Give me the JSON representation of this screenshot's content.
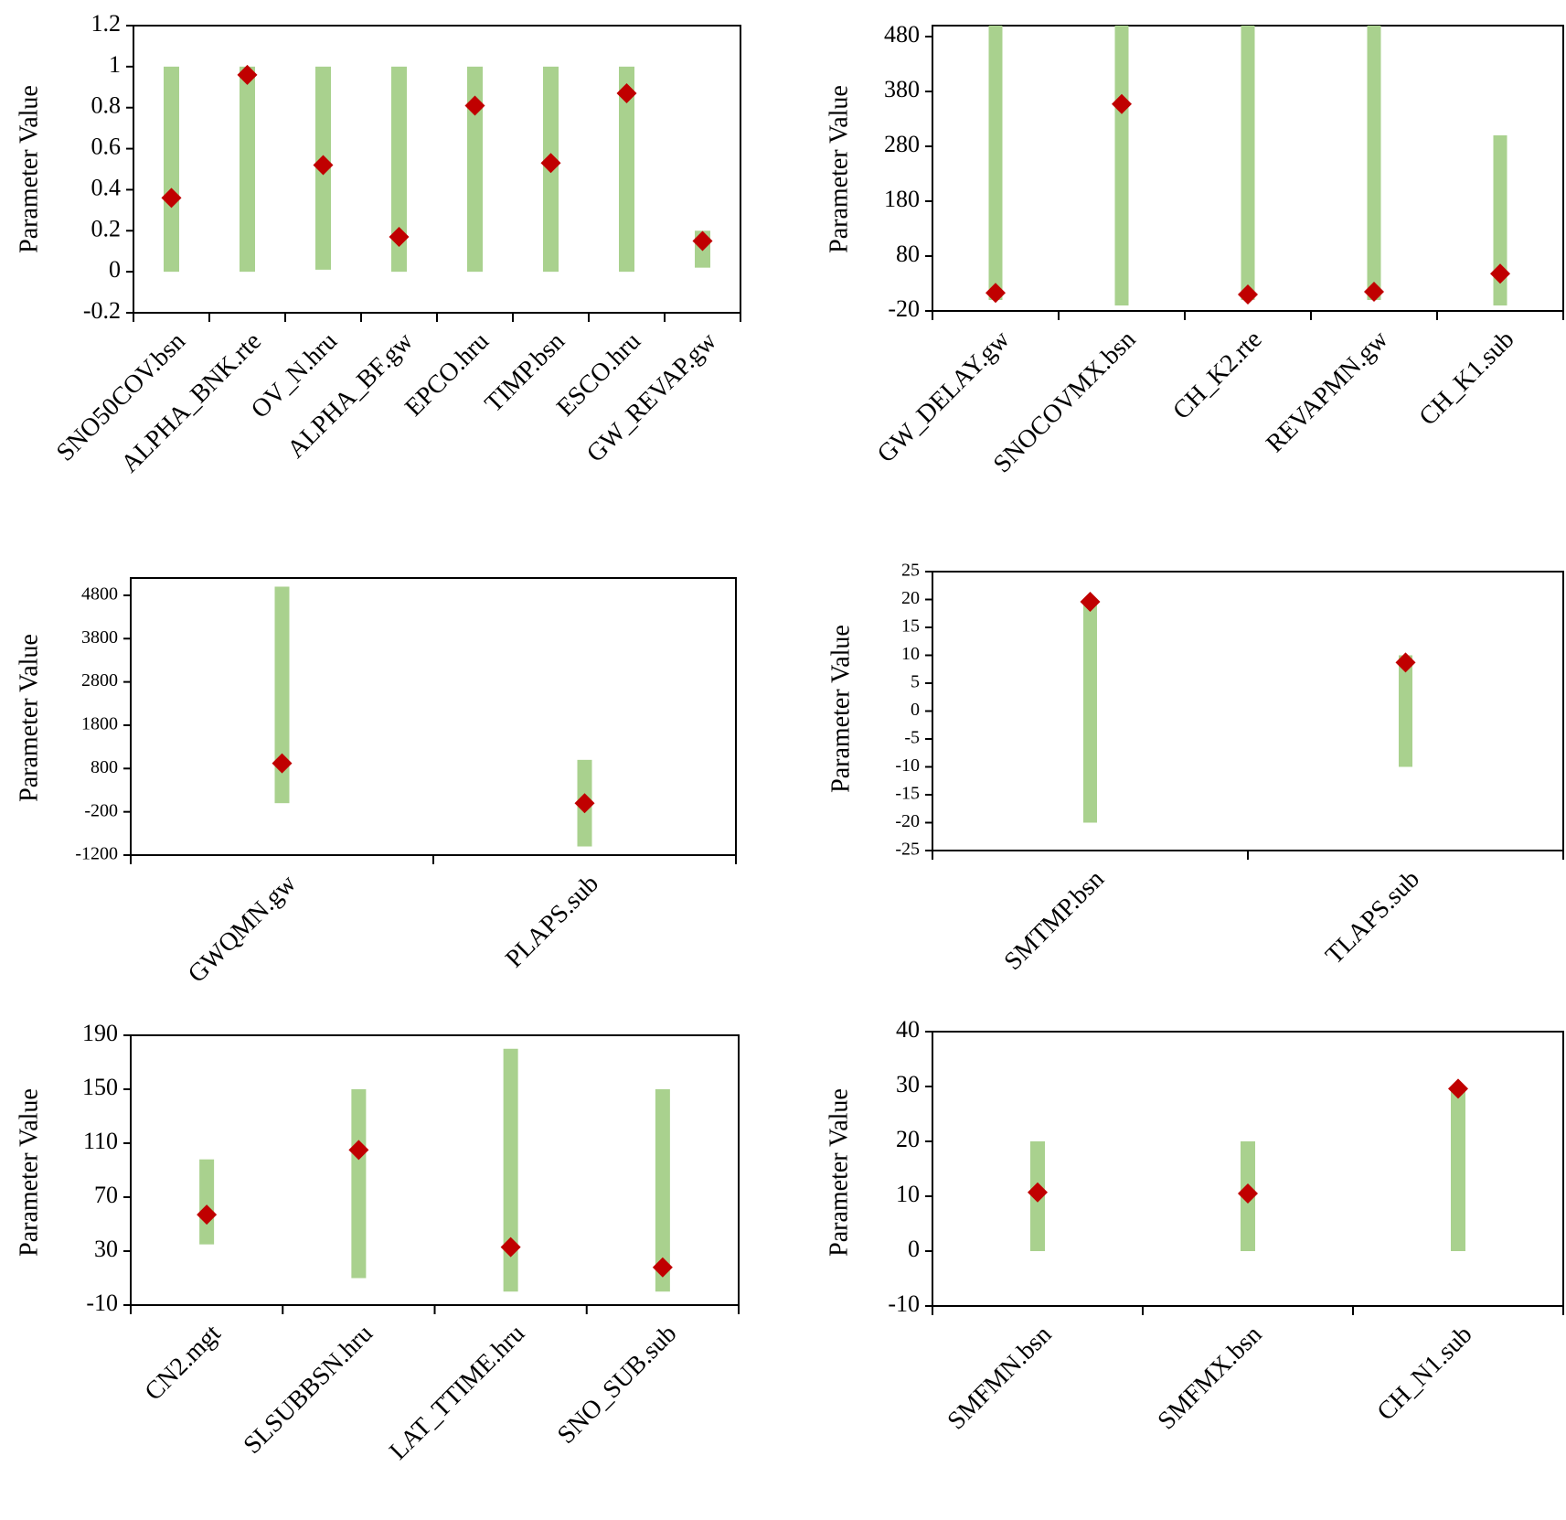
{
  "colors": {
    "range_bar": "#a9d18e",
    "marker": "#c00000",
    "axis": "#000000",
    "frame": "#000000"
  },
  "chart_data": [
    {
      "type": "range-dot",
      "title": "",
      "ylabel": "Parameter Value",
      "ylim": [
        -0.2,
        1.2
      ],
      "yticks": [
        -0.2,
        0,
        0.2,
        0.4,
        0.6,
        0.8,
        1,
        1.2
      ],
      "ytick_labels": [
        "-0.2",
        "0",
        "0.2",
        "0.4",
        "0.6",
        "0.8",
        "1",
        "1.2"
      ],
      "categories": [
        "SNO50COV.bsn",
        "ALPHA_BNK.rte",
        "OV_N.hru",
        "ALPHA_BF.gw",
        "EPCO.hru",
        "TIMP.bsn",
        "ESCO.hru",
        "GW_REVAP.gw"
      ],
      "range_min": [
        0,
        0,
        0.01,
        0,
        0,
        0,
        0,
        0.02
      ],
      "range_max": [
        1,
        1,
        1,
        1,
        1,
        1,
        1,
        0.2
      ],
      "fitted": [
        0.36,
        0.96,
        0.52,
        0.17,
        0.81,
        0.53,
        0.87,
        0.15
      ]
    },
    {
      "type": "range-dot",
      "title": "",
      "ylabel": "Parameter Value",
      "ylim": [
        -20,
        500
      ],
      "yticks": [
        -20,
        80,
        180,
        280,
        380,
        480
      ],
      "ytick_labels": [
        "-20",
        "80",
        "180",
        "280",
        "380",
        "480"
      ],
      "categories": [
        "GW_DELAY.gw",
        "SNOCOVMX.bsn",
        "CH_K2.rte",
        "REVAPMN.gw",
        "CH_K1.sub"
      ],
      "range_min": [
        0,
        -10,
        0,
        0,
        -10
      ],
      "range_max": [
        500,
        500,
        500,
        500,
        300
      ],
      "fitted": [
        13,
        357,
        10,
        15,
        48
      ]
    },
    {
      "type": "range-dot",
      "title": "",
      "ylabel": "Parameter Value",
      "ylim": [
        -1200,
        5200
      ],
      "yticks": [
        -1200,
        -200,
        800,
        1800,
        2800,
        3800,
        4800
      ],
      "ytick_labels": [
        "-1200",
        "-200",
        "800",
        "1800",
        "2800",
        "3800",
        "4800"
      ],
      "categories": [
        "GWQMN.gw",
        "PLAPS.sub"
      ],
      "range_min": [
        0,
        -1000
      ],
      "range_max": [
        5000,
        1000
      ],
      "fitted": [
        920,
        0
      ]
    },
    {
      "type": "range-dot",
      "title": "",
      "ylabel": "Parameter Value",
      "ylim": [
        -25,
        25
      ],
      "yticks": [
        -25,
        -20,
        -15,
        -10,
        -5,
        0,
        5,
        10,
        15,
        20,
        25
      ],
      "ytick_labels": [
        "-25",
        "-20",
        "-15",
        "-10",
        "-5",
        "0",
        "5",
        "10",
        "15",
        "20",
        "25"
      ],
      "categories": [
        "SMTMP.bsn",
        "TLAPS.sub"
      ],
      "range_min": [
        -20,
        -10
      ],
      "range_max": [
        20,
        10
      ],
      "fitted": [
        19.6,
        8.7
      ]
    },
    {
      "type": "range-dot",
      "title": "",
      "ylabel": "Parameter Value",
      "ylim": [
        -10,
        190
      ],
      "yticks": [
        -10,
        30,
        70,
        110,
        150,
        190
      ],
      "ytick_labels": [
        "-10",
        "30",
        "70",
        "110",
        "150",
        "190"
      ],
      "categories": [
        "CN2.mgt",
        "SLSUBBSN.hru",
        "LAT_TTIME.hru",
        "SNO_SUB.sub"
      ],
      "range_min": [
        35,
        10,
        0,
        0
      ],
      "range_max": [
        98,
        150,
        180,
        150
      ],
      "fitted": [
        57,
        105,
        33,
        18
      ]
    },
    {
      "type": "range-dot",
      "title": "",
      "ylabel": "Parameter Value",
      "ylim": [
        -10,
        40
      ],
      "yticks": [
        -10,
        0,
        10,
        20,
        30,
        40
      ],
      "ytick_labels": [
        "-10",
        "0",
        "10",
        "20",
        "30",
        "40"
      ],
      "categories": [
        "SMFMN.bsn",
        "SMFMX.bsn",
        "CH_N1.sub"
      ],
      "range_min": [
        0,
        0,
        0
      ],
      "range_max": [
        20,
        20,
        30
      ],
      "fitted": [
        10.7,
        10.5,
        29.6
      ]
    }
  ]
}
